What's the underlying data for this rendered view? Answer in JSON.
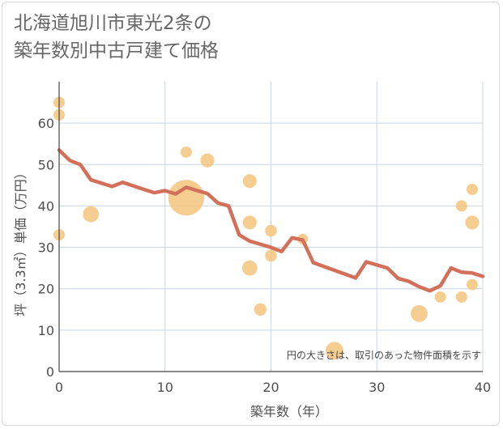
{
  "chart_data": {
    "type": "scatter",
    "title_lines": [
      "北海道旭川市東光2条の",
      "築年数別中古戸建て価格"
    ],
    "xlabel": "築年数（年）",
    "ylabel": "坪（3.3㎡）単価（万円）",
    "xlim": [
      0,
      40
    ],
    "ylim": [
      0,
      70
    ],
    "x_ticks": [
      0,
      10,
      20,
      30,
      40
    ],
    "y_ticks": [
      0,
      10,
      20,
      30,
      40,
      50,
      60
    ],
    "grid": true,
    "note": "円の大きさは、取引のあった物件面積を示す",
    "colors": {
      "bubble": "#f5c47e",
      "line": "#d3705a",
      "grid": "#c9d6e3",
      "axis": "#444444"
    },
    "bubbles": [
      {
        "x": 0,
        "y": 65,
        "size": 1
      },
      {
        "x": 0,
        "y": 62,
        "size": 1
      },
      {
        "x": 0,
        "y": 33,
        "size": 1
      },
      {
        "x": 3,
        "y": 38,
        "size": 2
      },
      {
        "x": 12,
        "y": 53,
        "size": 1
      },
      {
        "x": 12,
        "y": 42,
        "size": 10
      },
      {
        "x": 14,
        "y": 51,
        "size": 1.5
      },
      {
        "x": 18,
        "y": 46,
        "size": 1.5
      },
      {
        "x": 18,
        "y": 36,
        "size": 1.5
      },
      {
        "x": 18,
        "y": 25,
        "size": 1.8
      },
      {
        "x": 19,
        "y": 15,
        "size": 1.2
      },
      {
        "x": 20,
        "y": 34,
        "size": 1.1
      },
      {
        "x": 20,
        "y": 28,
        "size": 1.1
      },
      {
        "x": 23,
        "y": 32,
        "size": 0.9
      },
      {
        "x": 26,
        "y": 5,
        "size": 2.5
      },
      {
        "x": 34,
        "y": 14,
        "size": 2.2
      },
      {
        "x": 36,
        "y": 18,
        "size": 1
      },
      {
        "x": 38,
        "y": 40,
        "size": 1
      },
      {
        "x": 38,
        "y": 18,
        "size": 1
      },
      {
        "x": 39,
        "y": 44,
        "size": 1
      },
      {
        "x": 39,
        "y": 36,
        "size": 1.5
      },
      {
        "x": 39,
        "y": 21,
        "size": 1
      }
    ],
    "trend": [
      {
        "x": 0,
        "y": 53.5
      },
      {
        "x": 1,
        "y": 51
      },
      {
        "x": 2,
        "y": 50
      },
      {
        "x": 3,
        "y": 46.3
      },
      {
        "x": 5,
        "y": 44.7
      },
      {
        "x": 6,
        "y": 45.7
      },
      {
        "x": 8,
        "y": 44
      },
      {
        "x": 9,
        "y": 43.2
      },
      {
        "x": 10,
        "y": 43.7
      },
      {
        "x": 11,
        "y": 42.9
      },
      {
        "x": 12,
        "y": 44.5
      },
      {
        "x": 14,
        "y": 43
      },
      {
        "x": 15,
        "y": 40.7
      },
      {
        "x": 16,
        "y": 40
      },
      {
        "x": 17,
        "y": 33
      },
      {
        "x": 18,
        "y": 31.5
      },
      {
        "x": 20,
        "y": 30
      },
      {
        "x": 21,
        "y": 29
      },
      {
        "x": 22,
        "y": 32.3
      },
      {
        "x": 23,
        "y": 31.8
      },
      {
        "x": 24,
        "y": 26.3
      },
      {
        "x": 28,
        "y": 22.6
      },
      {
        "x": 29,
        "y": 26.5
      },
      {
        "x": 31,
        "y": 25
      },
      {
        "x": 32,
        "y": 22.5
      },
      {
        "x": 33,
        "y": 21.8
      },
      {
        "x": 34,
        "y": 20.5
      },
      {
        "x": 35,
        "y": 19.5
      },
      {
        "x": 36,
        "y": 20.7
      },
      {
        "x": 37,
        "y": 25
      },
      {
        "x": 38,
        "y": 24
      },
      {
        "x": 39,
        "y": 23.8
      },
      {
        "x": 40,
        "y": 23
      }
    ]
  }
}
